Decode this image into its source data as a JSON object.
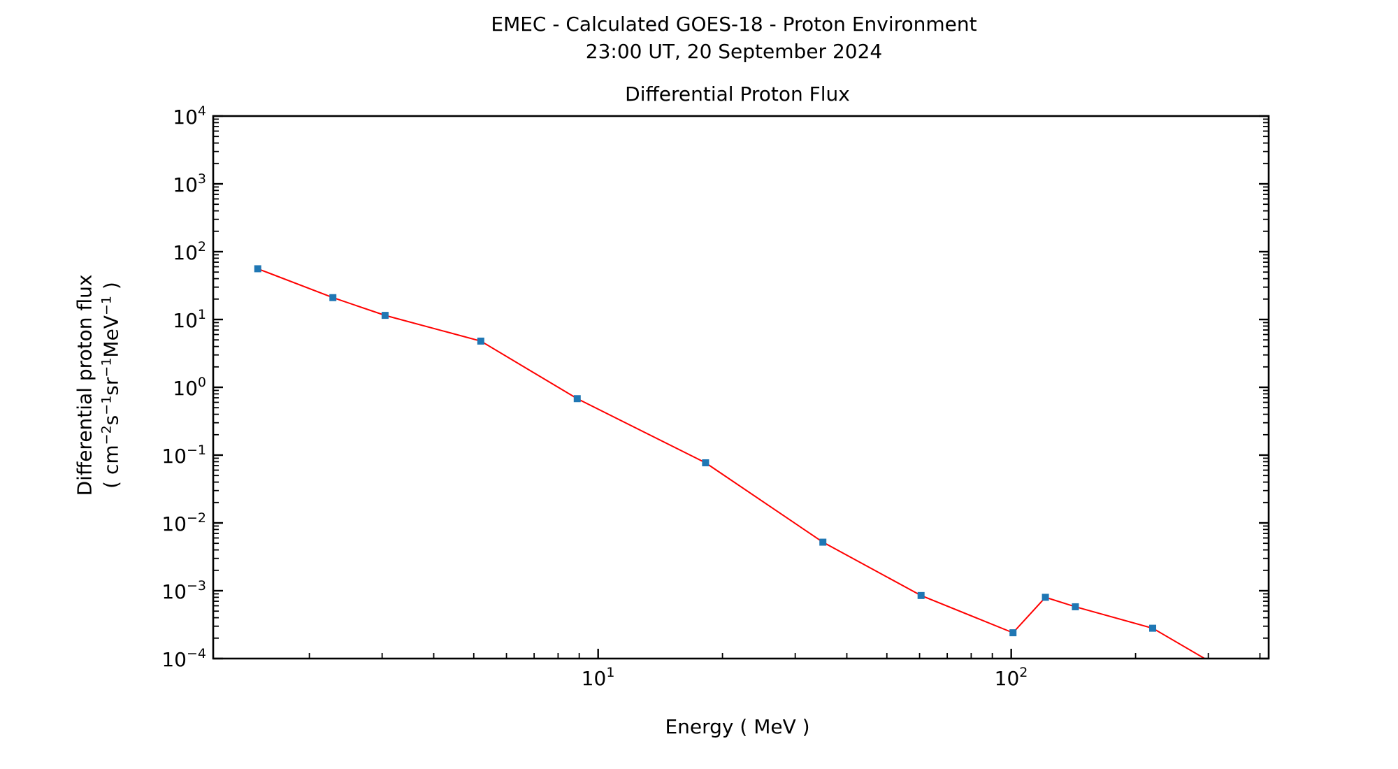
{
  "chart_data": {
    "type": "line",
    "suptitle": [
      "EMEC - Calculated GOES-18 - Proton Environment",
      "23:00 UT, 20 September 2024"
    ],
    "title": "Differential Proton Flux",
    "xlabel": "Energy ( MeV )",
    "ylabel_line1": "Differential proton flux",
    "ylabel_line2_parts": [
      "( cm",
      "−2",
      "s",
      "−1",
      "sr",
      "−1",
      "MeV",
      "−1",
      " )"
    ],
    "x_scale": "log",
    "y_scale": "log",
    "xlim": [
      1.17,
      420
    ],
    "ylim": [
      0.0001,
      10000
    ],
    "x_ticks": [
      {
        "value": 10,
        "base": "10",
        "exp": "1"
      },
      {
        "value": 100,
        "base": "10",
        "exp": "2"
      }
    ],
    "y_ticks": [
      {
        "value": 10000,
        "base": "10",
        "exp": "4"
      },
      {
        "value": 1000,
        "base": "10",
        "exp": "3"
      },
      {
        "value": 100,
        "base": "10",
        "exp": "2"
      },
      {
        "value": 10,
        "base": "10",
        "exp": "1"
      },
      {
        "value": 1,
        "base": "10",
        "exp": "0"
      },
      {
        "value": 0.1,
        "base": "10",
        "exp": "−1"
      },
      {
        "value": 0.01,
        "base": "10",
        "exp": "−2"
      },
      {
        "value": 0.001,
        "base": "10",
        "exp": "−3"
      },
      {
        "value": 0.0001,
        "base": "10",
        "exp": "−4"
      }
    ],
    "grid": false,
    "series": [
      {
        "x": [
          1.5,
          2.28,
          3.05,
          5.2,
          8.9,
          18.2,
          35.0,
          60.5,
          101.0,
          121.0,
          143.0,
          220.0,
          300.0
        ],
        "y": [
          56,
          21,
          11.5,
          4.8,
          0.68,
          0.077,
          0.0052,
          0.00085,
          0.00024,
          0.0008,
          0.00058,
          0.00028,
          9.3e-05
        ],
        "line_color": "#ff0000",
        "marker_color": "#1f77b4",
        "marker": "square"
      }
    ]
  }
}
